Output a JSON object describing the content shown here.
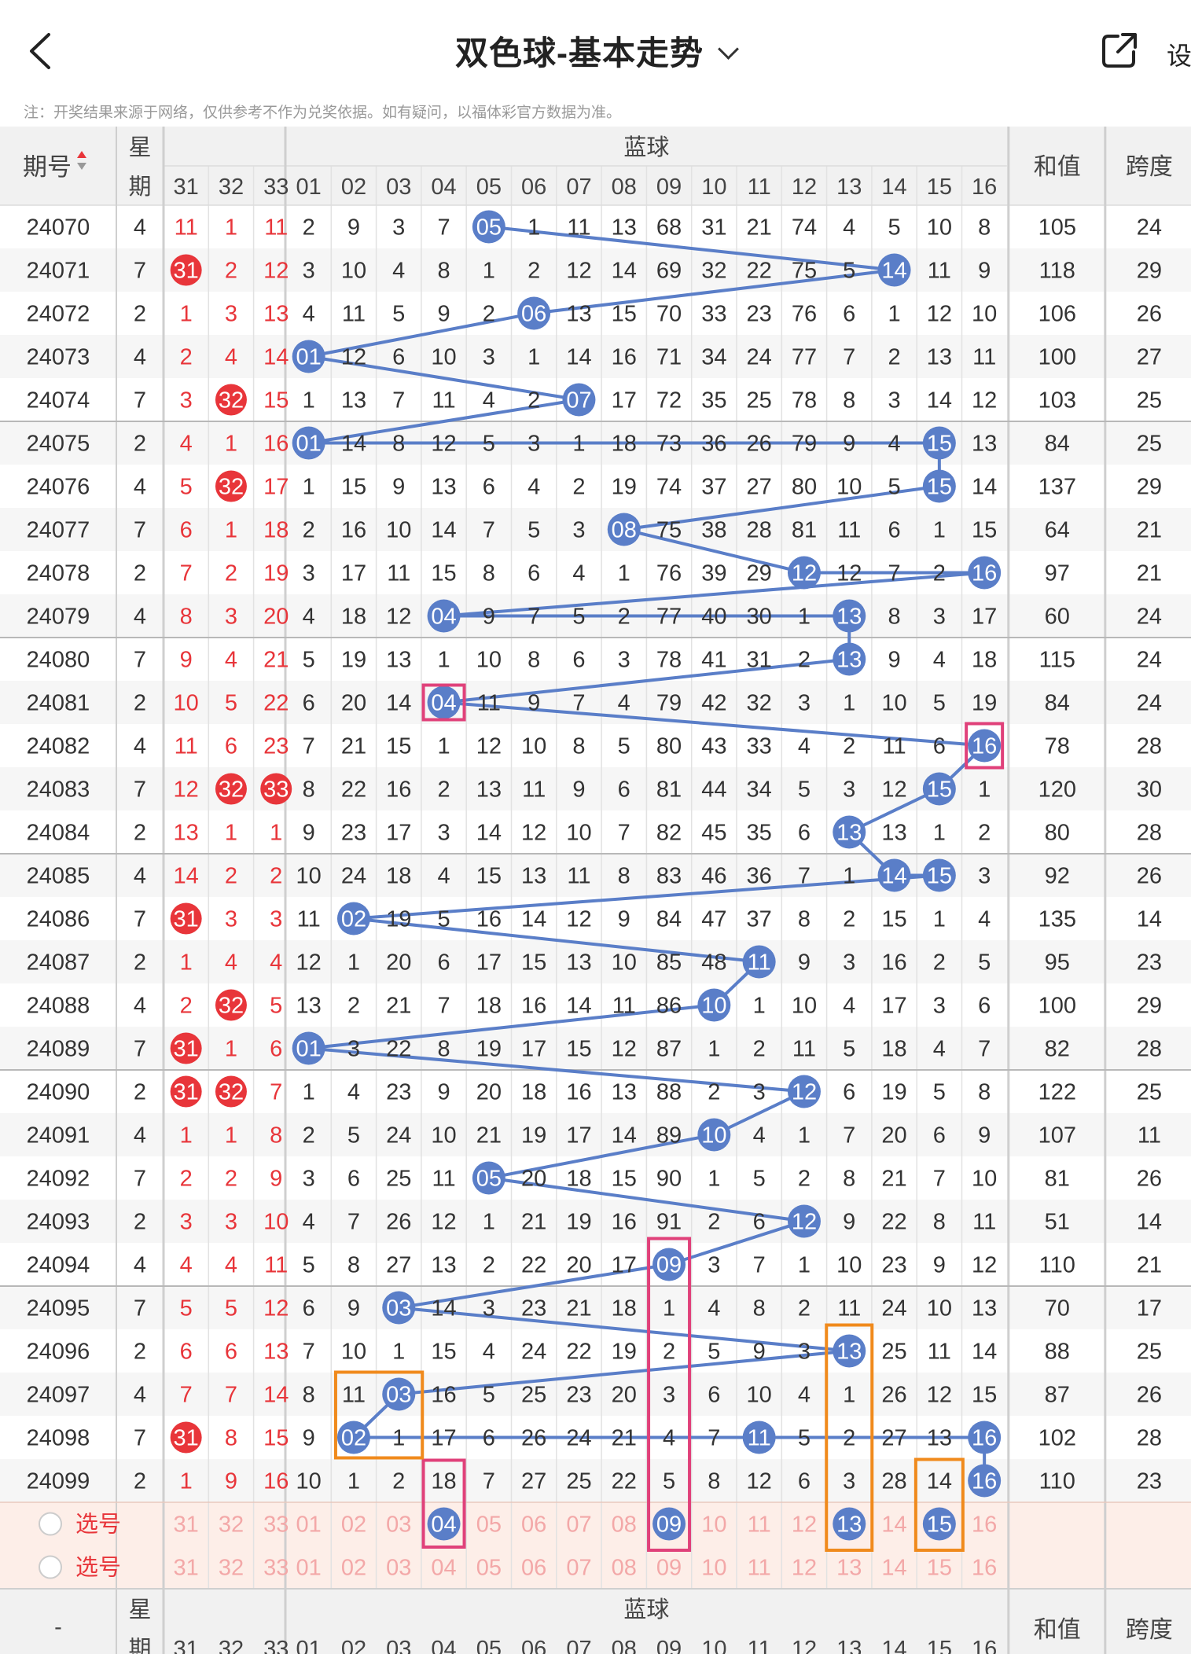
{
  "header": {
    "title": "双色球-基本走势",
    "settings_label": "设"
  },
  "notice": "注：开奖结果来源于网络，仅供参考不作为兑奖依据。如有疑问，以福体彩官方数据为准。",
  "table_header": {
    "issue": "期号",
    "week": "星期",
    "blue_group": "蓝球",
    "sum": "和值",
    "span": "跨度",
    "footer_issue": "-"
  },
  "sort_icon": "sort-up-down-icon",
  "week_cols": [
    "31",
    "32",
    "33"
  ],
  "blue_cols": [
    "01",
    "02",
    "03",
    "04",
    "05",
    "06",
    "07",
    "08",
    "09",
    "10",
    "11",
    "12",
    "13",
    "14",
    "15",
    "16"
  ],
  "colors": {
    "blue": "#5a7ec8",
    "red": "#e8353a",
    "pink": "#e0417a",
    "orange": "#f08a1c",
    "select_bg": "#fdeee8"
  },
  "rows": [
    {
      "issue": "24070",
      "week": "4",
      "w": [
        "11",
        "1",
        "11"
      ],
      "b": [
        "2",
        "9",
        "3",
        "7",
        "05",
        "1",
        "11",
        "13",
        "68",
        "31",
        "21",
        "74",
        "4",
        "5",
        "10",
        "8"
      ],
      "sum": "105",
      "span": "24"
    },
    {
      "issue": "24071",
      "week": "7",
      "w": [
        "31",
        "2",
        "12"
      ],
      "b": [
        "3",
        "10",
        "4",
        "8",
        "1",
        "2",
        "12",
        "14",
        "69",
        "32",
        "22",
        "75",
        "5",
        "14",
        "11",
        "9"
      ],
      "sum": "118",
      "span": "29"
    },
    {
      "issue": "24072",
      "week": "2",
      "w": [
        "1",
        "3",
        "13"
      ],
      "b": [
        "4",
        "11",
        "5",
        "9",
        "2",
        "06",
        "13",
        "15",
        "70",
        "33",
        "23",
        "76",
        "6",
        "1",
        "12",
        "10"
      ],
      "sum": "106",
      "span": "26"
    },
    {
      "issue": "24073",
      "week": "4",
      "w": [
        "2",
        "4",
        "14"
      ],
      "b": [
        "01",
        "12",
        "6",
        "10",
        "3",
        "1",
        "14",
        "16",
        "71",
        "34",
        "24",
        "77",
        "7",
        "2",
        "13",
        "11"
      ],
      "sum": "100",
      "span": "27"
    },
    {
      "issue": "24074",
      "week": "7",
      "w": [
        "3",
        "32",
        "15"
      ],
      "b": [
        "1",
        "13",
        "7",
        "11",
        "4",
        "2",
        "07",
        "17",
        "72",
        "35",
        "25",
        "78",
        "8",
        "3",
        "14",
        "12"
      ],
      "sum": "103",
      "span": "25"
    },
    {
      "issue": "24075",
      "week": "2",
      "w": [
        "4",
        "1",
        "16"
      ],
      "b": [
        "01",
        "14",
        "8",
        "12",
        "5",
        "3",
        "1",
        "18",
        "73",
        "36",
        "26",
        "79",
        "9",
        "4",
        "15",
        "13"
      ],
      "sum": "84",
      "span": "25"
    },
    {
      "issue": "24076",
      "week": "4",
      "w": [
        "5",
        "32",
        "17"
      ],
      "b": [
        "1",
        "15",
        "9",
        "13",
        "6",
        "4",
        "2",
        "19",
        "74",
        "37",
        "27",
        "80",
        "10",
        "5",
        "15",
        "14"
      ],
      "sum": "137",
      "span": "29"
    },
    {
      "issue": "24077",
      "week": "7",
      "w": [
        "6",
        "1",
        "18"
      ],
      "b": [
        "2",
        "16",
        "10",
        "14",
        "7",
        "5",
        "3",
        "08",
        "75",
        "38",
        "28",
        "81",
        "11",
        "6",
        "1",
        "15"
      ],
      "sum": "64",
      "span": "21"
    },
    {
      "issue": "24078",
      "week": "2",
      "w": [
        "7",
        "2",
        "19"
      ],
      "b": [
        "3",
        "17",
        "11",
        "15",
        "8",
        "6",
        "4",
        "1",
        "76",
        "39",
        "29",
        "12",
        "12",
        "7",
        "2",
        "16"
      ],
      "sum": "97",
      "span": "21"
    },
    {
      "issue": "24079",
      "week": "4",
      "w": [
        "8",
        "3",
        "20"
      ],
      "b": [
        "4",
        "18",
        "12",
        "04",
        "9",
        "7",
        "5",
        "2",
        "77",
        "40",
        "30",
        "1",
        "13",
        "8",
        "3",
        "17"
      ],
      "sum": "60",
      "span": "24"
    },
    {
      "issue": "24080",
      "week": "7",
      "w": [
        "9",
        "4",
        "21"
      ],
      "b": [
        "5",
        "19",
        "13",
        "1",
        "10",
        "8",
        "6",
        "3",
        "78",
        "41",
        "31",
        "2",
        "13",
        "9",
        "4",
        "18"
      ],
      "sum": "115",
      "span": "24"
    },
    {
      "issue": "24081",
      "week": "2",
      "w": [
        "10",
        "5",
        "22"
      ],
      "b": [
        "6",
        "20",
        "14",
        "04",
        "11",
        "9",
        "7",
        "4",
        "79",
        "42",
        "32",
        "3",
        "1",
        "10",
        "5",
        "19"
      ],
      "sum": "84",
      "span": "24"
    },
    {
      "issue": "24082",
      "week": "4",
      "w": [
        "11",
        "6",
        "23"
      ],
      "b": [
        "7",
        "21",
        "15",
        "1",
        "12",
        "10",
        "8",
        "5",
        "80",
        "43",
        "33",
        "4",
        "2",
        "11",
        "6",
        "16"
      ],
      "sum": "78",
      "span": "28"
    },
    {
      "issue": "24083",
      "week": "7",
      "w": [
        "12",
        "32",
        "33"
      ],
      "b": [
        "8",
        "22",
        "16",
        "2",
        "13",
        "11",
        "9",
        "6",
        "81",
        "44",
        "34",
        "5",
        "3",
        "12",
        "15",
        "1"
      ],
      "sum": "120",
      "span": "30"
    },
    {
      "issue": "24084",
      "week": "2",
      "w": [
        "13",
        "1",
        "1"
      ],
      "b": [
        "9",
        "23",
        "17",
        "3",
        "14",
        "12",
        "10",
        "7",
        "82",
        "45",
        "35",
        "6",
        "13",
        "13",
        "1",
        "2"
      ],
      "sum": "80",
      "span": "28"
    },
    {
      "issue": "24085",
      "week": "4",
      "w": [
        "14",
        "2",
        "2"
      ],
      "b": [
        "10",
        "24",
        "18",
        "4",
        "15",
        "13",
        "11",
        "8",
        "83",
        "46",
        "36",
        "7",
        "1",
        "14",
        "15",
        "3"
      ],
      "sum": "92",
      "span": "26"
    },
    {
      "issue": "24086",
      "week": "7",
      "w": [
        "31",
        "3",
        "3"
      ],
      "b": [
        "11",
        "02",
        "19",
        "5",
        "16",
        "14",
        "12",
        "9",
        "84",
        "47",
        "37",
        "8",
        "2",
        "15",
        "1",
        "4"
      ],
      "sum": "135",
      "span": "14"
    },
    {
      "issue": "24087",
      "week": "2",
      "w": [
        "1",
        "4",
        "4"
      ],
      "b": [
        "12",
        "1",
        "20",
        "6",
        "17",
        "15",
        "13",
        "10",
        "85",
        "48",
        "11",
        "9",
        "3",
        "16",
        "2",
        "5"
      ],
      "sum": "95",
      "span": "23"
    },
    {
      "issue": "24088",
      "week": "4",
      "w": [
        "2",
        "32",
        "5"
      ],
      "b": [
        "13",
        "2",
        "21",
        "7",
        "18",
        "16",
        "14",
        "11",
        "86",
        "10",
        "1",
        "10",
        "4",
        "17",
        "3",
        "6"
      ],
      "sum": "100",
      "span": "29"
    },
    {
      "issue": "24089",
      "week": "7",
      "w": [
        "31",
        "1",
        "6"
      ],
      "b": [
        "01",
        "3",
        "22",
        "8",
        "19",
        "17",
        "15",
        "12",
        "87",
        "1",
        "2",
        "11",
        "5",
        "18",
        "4",
        "7"
      ],
      "sum": "82",
      "span": "28"
    },
    {
      "issue": "24090",
      "week": "2",
      "w": [
        "31",
        "32",
        "7"
      ],
      "b": [
        "1",
        "4",
        "23",
        "9",
        "20",
        "18",
        "16",
        "13",
        "88",
        "2",
        "3",
        "12",
        "6",
        "19",
        "5",
        "8"
      ],
      "sum": "122",
      "span": "25"
    },
    {
      "issue": "24091",
      "week": "4",
      "w": [
        "1",
        "1",
        "8"
      ],
      "b": [
        "2",
        "5",
        "24",
        "10",
        "21",
        "19",
        "17",
        "14",
        "89",
        "10",
        "4",
        "1",
        "7",
        "20",
        "6",
        "9"
      ],
      "sum": "107",
      "span": "11"
    },
    {
      "issue": "24092",
      "week": "7",
      "w": [
        "2",
        "2",
        "9"
      ],
      "b": [
        "3",
        "6",
        "25",
        "11",
        "05",
        "20",
        "18",
        "15",
        "90",
        "1",
        "5",
        "2",
        "8",
        "21",
        "7",
        "10"
      ],
      "sum": "81",
      "span": "26"
    },
    {
      "issue": "24093",
      "week": "2",
      "w": [
        "3",
        "3",
        "10"
      ],
      "b": [
        "4",
        "7",
        "26",
        "12",
        "1",
        "21",
        "19",
        "16",
        "91",
        "2",
        "6",
        "12",
        "9",
        "22",
        "8",
        "11"
      ],
      "sum": "51",
      "span": "14"
    },
    {
      "issue": "24094",
      "week": "4",
      "w": [
        "4",
        "4",
        "11"
      ],
      "b": [
        "5",
        "8",
        "27",
        "13",
        "2",
        "22",
        "20",
        "17",
        "09",
        "3",
        "7",
        "1",
        "10",
        "23",
        "9",
        "12"
      ],
      "sum": "110",
      "span": "21"
    },
    {
      "issue": "24095",
      "week": "7",
      "w": [
        "5",
        "5",
        "12"
      ],
      "b": [
        "6",
        "9",
        "03",
        "14",
        "3",
        "23",
        "21",
        "18",
        "1",
        "4",
        "8",
        "2",
        "11",
        "24",
        "10",
        "13"
      ],
      "sum": "70",
      "span": "17"
    },
    {
      "issue": "24096",
      "week": "2",
      "w": [
        "6",
        "6",
        "13"
      ],
      "b": [
        "7",
        "10",
        "1",
        "15",
        "4",
        "24",
        "22",
        "19",
        "2",
        "5",
        "9",
        "3",
        "13",
        "25",
        "11",
        "14"
      ],
      "sum": "88",
      "span": "25"
    },
    {
      "issue": "24097",
      "week": "4",
      "w": [
        "7",
        "7",
        "14"
      ],
      "b": [
        "8",
        "11",
        "03",
        "16",
        "5",
        "25",
        "23",
        "20",
        "3",
        "6",
        "10",
        "4",
        "1",
        "26",
        "12",
        "15"
      ],
      "sum": "87",
      "span": "26"
    },
    {
      "issue": "24098",
      "week": "7",
      "w": [
        "31",
        "8",
        "15"
      ],
      "b": [
        "9",
        "02",
        "1",
        "17",
        "6",
        "26",
        "24",
        "21",
        "4",
        "7",
        "11",
        "5",
        "2",
        "27",
        "13",
        "16"
      ],
      "sum": "102",
      "span": "28"
    },
    {
      "issue": "24099",
      "week": "2",
      "w": [
        "1",
        "9",
        "16"
      ],
      "b": [
        "10",
        "1",
        "2",
        "18",
        "7",
        "27",
        "25",
        "22",
        "5",
        "8",
        "12",
        "6",
        "3",
        "28",
        "14",
        "16"
      ],
      "sum": "110",
      "span": "23"
    }
  ],
  "select_rows": [
    {
      "label": "选号",
      "selected_week": [],
      "selected_blue": [
        "04",
        "09",
        "13",
        "15"
      ]
    },
    {
      "label": "选号",
      "selected_week": [],
      "selected_blue": []
    }
  ]
}
